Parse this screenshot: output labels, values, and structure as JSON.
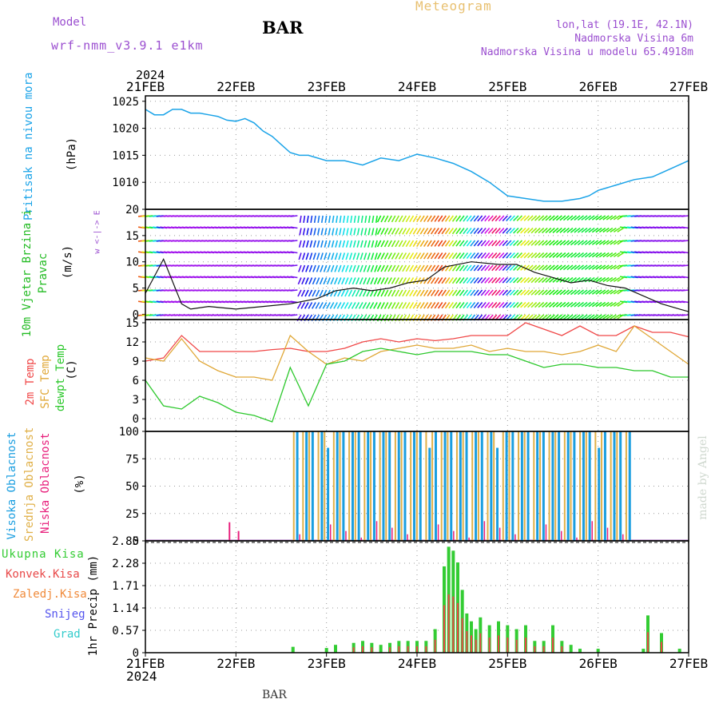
{
  "header": {
    "model_label": "Model",
    "model_name": "wrf-nmm_v3.9.1 e1km",
    "station": "BAR",
    "meteogram": "Meteogram",
    "lonlat": "lon,lat (19.1E, 42.1N)",
    "altitude": "Nadmorska Visina 6m",
    "model_altitude": "Nadmorska Visina u modelu 65.4918m",
    "year": "2024",
    "footer_station": "BAR",
    "credit": "made by Angel"
  },
  "colors": {
    "pressure": "#1aa3e8",
    "temp2m": "#f04848",
    "sfc": "#e0a838",
    "dewpt": "#2cc82c",
    "high_cloud": "#1a9ee0",
    "mid_cloud": "#e0b048",
    "low_cloud": "#e8207c",
    "precip_total": "#33cc33",
    "precip_conv": "#e84848",
    "label_purple": "#9b4fd0",
    "meteogram_title": "#e8c070"
  },
  "chart_data": [
    {
      "type": "line",
      "panel": "pressure",
      "labels": {
        "name": "Pritisak na nivou mora",
        "unit": "(hPa)"
      },
      "x_ticks": [
        "21FEB",
        "22FEB",
        "23FEB",
        "24FEB",
        "25FEB",
        "26FEB",
        "27FEB"
      ],
      "yticks": [
        1010,
        1015,
        1020,
        1025
      ],
      "ylim": [
        1005,
        1026
      ],
      "x_days": [
        0,
        0.1,
        0.2,
        0.3,
        0.4,
        0.5,
        0.6,
        0.7,
        0.8,
        0.9,
        1.0,
        1.1,
        1.2,
        1.3,
        1.4,
        1.5,
        1.6,
        1.7,
        1.8,
        2.0,
        2.2,
        2.4,
        2.6,
        2.8,
        3.0,
        3.2,
        3.4,
        3.6,
        3.8,
        4.0,
        4.2,
        4.4,
        4.6,
        4.8,
        4.9,
        5.0,
        5.1,
        5.2,
        5.4,
        5.6,
        5.8,
        6.0
      ],
      "values": [
        1023.5,
        1022.5,
        1022.5,
        1023.5,
        1023.5,
        1022.8,
        1022.8,
        1022.5,
        1022.2,
        1021.5,
        1021.3,
        1021.8,
        1021.0,
        1019.5,
        1018.5,
        1017.0,
        1015.5,
        1015.0,
        1015.0,
        1014.0,
        1014.0,
        1013.2,
        1014.5,
        1014.0,
        1015.2,
        1014.5,
        1013.5,
        1012.0,
        1010.0,
        1007.5,
        1007.0,
        1006.5,
        1006.5,
        1007.0,
        1007.5,
        1008.5,
        1009.0,
        1009.5,
        1010.5,
        1011.0,
        1012.5,
        1014.0
      ]
    },
    {
      "type": "line",
      "panel": "wind",
      "labels": {
        "name": "10m Vjetar Brzina i Pravac",
        "unit": "(m/s)",
        "compass": "w <-|-> E"
      },
      "yticks": [
        0,
        5,
        10,
        15,
        20
      ],
      "ylim": [
        -1,
        20
      ],
      "x_days": [
        0,
        0.2,
        0.4,
        0.5,
        0.7,
        1.0,
        1.3,
        1.6,
        1.9,
        2.1,
        2.3,
        2.5,
        2.7,
        2.9,
        3.1,
        3.3,
        3.6,
        3.9,
        4.1,
        4.3,
        4.5,
        4.7,
        4.9,
        5.1,
        5.3,
        5.5,
        5.7,
        5.9,
        6.0
      ],
      "values": [
        4.0,
        10.5,
        2.0,
        1.0,
        1.5,
        1.0,
        1.5,
        2.0,
        3.0,
        4.5,
        5.0,
        4.5,
        5.0,
        6.0,
        6.5,
        9.0,
        10.0,
        9.5,
        9.5,
        8.0,
        7.0,
        6.0,
        6.5,
        5.5,
        5.0,
        3.5,
        2.0,
        1.0,
        0.5
      ]
    },
    {
      "type": "line",
      "panel": "temperature",
      "labels": {
        "t2m": "2m Temp",
        "sfc": "SFC Temp",
        "dewpt": "dewpt Temp",
        "unit": "(C)"
      },
      "yticks": [
        0,
        3,
        6,
        9,
        12,
        15
      ],
      "ylim": [
        -2,
        15.5
      ],
      "x_days": [
        0,
        0.2,
        0.4,
        0.6,
        0.8,
        1.0,
        1.2,
        1.4,
        1.6,
        1.8,
        2.0,
        2.2,
        2.4,
        2.6,
        2.8,
        3.0,
        3.2,
        3.4,
        3.6,
        3.8,
        4.0,
        4.2,
        4.4,
        4.6,
        4.8,
        5.0,
        5.2,
        5.4,
        5.6,
        5.8,
        6.0
      ],
      "series": [
        {
          "name": "2m Temp",
          "values": [
            9.0,
            9.5,
            13.0,
            10.5,
            10.5,
            10.5,
            10.5,
            10.8,
            11.0,
            10.5,
            10.5,
            11.0,
            12.0,
            12.5,
            12.0,
            12.5,
            12.2,
            12.5,
            13.0,
            13.0,
            13.0,
            15.0,
            14.0,
            13.0,
            14.5,
            13.0,
            13.0,
            14.5,
            13.5,
            13.5,
            12.8
          ]
        },
        {
          "name": "SFC Temp",
          "values": [
            9.5,
            9.0,
            12.5,
            9.0,
            7.5,
            6.5,
            6.5,
            6.0,
            13.0,
            10.5,
            8.5,
            9.5,
            9.0,
            10.5,
            11.0,
            11.5,
            11.0,
            11.0,
            11.5,
            10.5,
            11.0,
            10.5,
            10.5,
            10.0,
            10.5,
            11.5,
            10.5,
            14.5,
            12.5,
            10.5,
            8.5
          ]
        },
        {
          "name": "dewpt Temp",
          "values": [
            6.0,
            2.0,
            1.5,
            3.5,
            2.5,
            1.0,
            0.5,
            -0.5,
            8.0,
            2.0,
            8.5,
            9.0,
            10.5,
            11.0,
            10.5,
            10.0,
            10.5,
            10.5,
            10.5,
            10.0,
            10.0,
            9.0,
            8.0,
            8.5,
            8.5,
            8.0,
            8.0,
            7.5,
            7.5,
            6.5,
            6.5
          ]
        }
      ]
    },
    {
      "type": "bar",
      "panel": "cloud",
      "labels": {
        "high": "Visoka Oblacnost",
        "mid": "Srednja Oblacnost",
        "low": "Niska Oblacnost",
        "unit": "(%)"
      },
      "yticks": [
        0,
        25,
        50,
        75,
        100
      ],
      "ylim": [
        0,
        100
      ],
      "cloudy_days": [
        1.63,
        5.37
      ],
      "high_value_estimate": 100,
      "low_spikes": [
        {
          "x_day": 0.92,
          "value": 17
        },
        {
          "x_day": 1.02,
          "value": 9
        }
      ]
    },
    {
      "type": "bar",
      "panel": "precip",
      "labels": {
        "total": "Ukupna Kisa",
        "conv": "Konvek.Kisa",
        "frozen": "Zaledj.Kisa",
        "snow": "Snijeg",
        "hail": "Grad",
        "unit": "1hr Precip (mm)"
      },
      "yticks": [
        "0",
        "0.57",
        "1.14",
        "1.71",
        "2.28",
        "2.85"
      ],
      "ylim": [
        0,
        2.85
      ],
      "x_days": [
        1.63,
        2.0,
        2.1,
        2.3,
        2.4,
        2.5,
        2.6,
        2.7,
        2.8,
        2.9,
        3.0,
        3.1,
        3.2,
        3.3,
        3.35,
        3.4,
        3.45,
        3.5,
        3.55,
        3.6,
        3.65,
        3.7,
        3.8,
        3.9,
        4.0,
        4.1,
        4.2,
        4.3,
        4.4,
        4.5,
        4.6,
        4.7,
        4.8,
        5.0,
        5.5,
        5.55,
        5.7,
        5.9
      ],
      "values": [
        0.15,
        0.12,
        0.2,
        0.25,
        0.3,
        0.25,
        0.2,
        0.25,
        0.3,
        0.3,
        0.3,
        0.3,
        0.6,
        2.2,
        2.7,
        2.6,
        2.3,
        1.6,
        1.0,
        0.8,
        0.6,
        0.9,
        0.7,
        0.8,
        0.7,
        0.6,
        0.7,
        0.3,
        0.3,
        0.7,
        0.3,
        0.2,
        0.1,
        0.1,
        0.1,
        0.95,
        0.5,
        0.1
      ]
    }
  ]
}
